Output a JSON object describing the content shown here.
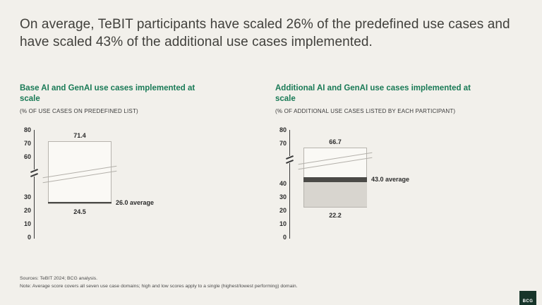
{
  "page": {
    "title": "On average, TeBIT participants have scaled 26% of the predefined use cases and have scaled 43% of the additional use cases implemented.",
    "background": "#f2f0eb",
    "accent_green": "#197a56"
  },
  "footer": {
    "sources": "Sources: TeBIT 2024; BCG analysis.",
    "note": "Note: Average score covers all seven use case domains; high and low scores apply to a single (highest/lowest performing) domain.",
    "logo": "BCG"
  },
  "chart_data": [
    {
      "type": "bar",
      "subtype": "range-bar-with-axis-break",
      "title": "Base AI and GenAI use cases implemented at scale",
      "subtitle": "(% OF USE CASES ON PREDEFINED LIST)",
      "ylabel": "% of use cases on predefined list",
      "ticks": [
        0,
        10,
        20,
        30,
        60,
        70,
        80
      ],
      "axis_break_between": [
        30,
        60
      ],
      "ylim": [
        0,
        80
      ],
      "high": 71.4,
      "low": 24.5,
      "average": 26.0,
      "high_label": "71.4",
      "low_label": "24.5",
      "average_label": "26.0 average",
      "fill_below_average": false
    },
    {
      "type": "bar",
      "subtype": "range-bar-with-axis-break",
      "title": "Additional AI and GenAI use cases implemented at scale",
      "subtitle": "(% OF ADDITIONAL USE CASES LISTED BY EACH PARTICIPANT)",
      "ylabel": "% of additional use cases listed by each participant",
      "ticks": [
        0,
        10,
        20,
        30,
        40,
        70,
        80
      ],
      "axis_break_between": [
        40,
        70
      ],
      "ylim": [
        0,
        80
      ],
      "high": 66.7,
      "low": 22.2,
      "average": 43.0,
      "high_label": "66.7",
      "low_label": "22.2",
      "average_label": "43.0 average",
      "fill_below_average": true
    }
  ]
}
